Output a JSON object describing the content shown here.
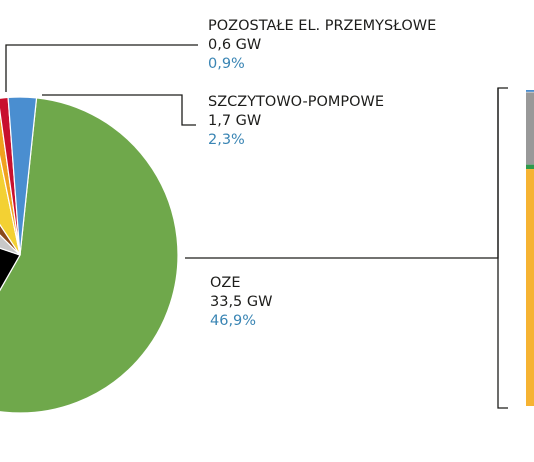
{
  "chart_data": {
    "type": "pie",
    "colors": {
      "leader_line": "#1d1d1b",
      "value_text": "#1d1d1b",
      "percent_text": "#3a85b4"
    },
    "slices": [
      {
        "name": "OZE",
        "value": 33.5,
        "unit": "GW",
        "label": "33,5 GW",
        "percent": "46,9%",
        "color": "#6fa84b"
      },
      {
        "name": "",
        "value": 13.0,
        "color": "#000000"
      },
      {
        "name": "",
        "value": 4.3,
        "color": "#c8c8c8"
      },
      {
        "name": "",
        "value": 1.9,
        "color": "#8b4a1c"
      },
      {
        "name": "",
        "value": 3.6,
        "color": "#f3d133"
      },
      {
        "name": "",
        "value": 0.6,
        "color": "#f0a21e"
      },
      {
        "name": "POZOSTAŁE EL. PRZEMYSŁOWE",
        "value": 0.6,
        "unit": "GW",
        "label": "0,6 GW",
        "percent": "0,9%",
        "color": "#c8102e"
      },
      {
        "name": "SZCZYTOWO-POMPOWE",
        "value": 1.7,
        "unit": "GW",
        "label": "1,7 GW",
        "percent": "2,3%",
        "color": "#4a8ed0"
      }
    ],
    "stacked_bar": {
      "segments": [
        {
          "value": 0.6,
          "color": "#4a8ed0"
        },
        {
          "value": 0.2,
          "color": "#dcdcdc"
        },
        {
          "value": 22.8,
          "color": "#999999"
        },
        {
          "value": 1.4,
          "color": "#2e9a4c"
        },
        {
          "value": 74.9,
          "color": "#f6b332"
        }
      ]
    }
  },
  "labels": [
    {
      "name": "POZOSTAŁE EL. PRZEMYSŁOWE",
      "value": "0,6 GW",
      "percent": "0,9%"
    },
    {
      "name": "SZCZYTOWO-POMPOWE",
      "value": "1,7 GW",
      "percent": "2,3%"
    },
    {
      "name": "OZE",
      "value": "33,5 GW",
      "percent": "46,9%"
    }
  ]
}
